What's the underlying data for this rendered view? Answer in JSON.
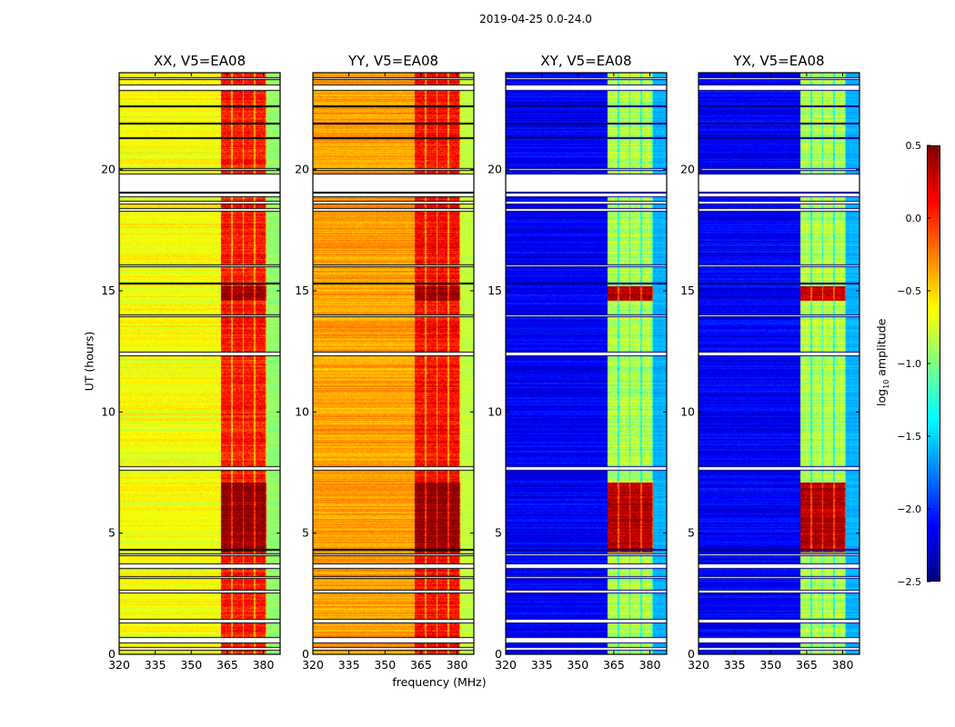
{
  "chart_data": {
    "type": "heatmap",
    "suptitle": "2019-04-25 0.0-24.0",
    "xlabel": "frequency (MHz)",
    "ylabel": "UT (hours)",
    "xlim": [
      320,
      387
    ],
    "ylim": [
      0,
      24
    ],
    "xticks": [
      320,
      335,
      350,
      365,
      380
    ],
    "yticks": [
      0,
      5,
      10,
      15,
      20
    ],
    "colorbar": {
      "label_prefix": "log",
      "label_sub": "10",
      "label_suffix": " amplitude",
      "range": [
        -2.5,
        0.5
      ],
      "ticks": [
        0.5,
        0.0,
        -0.5,
        -1.0,
        -1.5,
        -2.0,
        -2.5
      ],
      "tick_labels": [
        "0.5",
        "0.0",
        "−0.5",
        "−1.0",
        "−1.5",
        "−2.0",
        "−2.5"
      ],
      "colormap": "jet"
    },
    "panels": [
      {
        "title": "XX, V5=EA08",
        "base_level": -0.65,
        "band_level": 0.05,
        "edge_level": -0.95,
        "strong_level": 0.45
      },
      {
        "title": "YY, V5=EA08",
        "base_level": -0.35,
        "band_level": 0.1,
        "edge_level": -0.8,
        "strong_level": 0.45
      },
      {
        "title": "XY, V5=EA08",
        "base_level": -2.15,
        "band_level": -0.85,
        "edge_level": -1.6,
        "strong_level": 0.35
      },
      {
        "title": "YX, V5=EA08",
        "base_level": -2.15,
        "band_level": -0.85,
        "edge_level": -1.6,
        "strong_level": 0.35
      }
    ],
    "band_mhz": [
      362.5,
      381.5
    ],
    "strong_intervals_hours": [
      [
        4.2,
        7.1
      ],
      [
        14.6,
        15.2
      ]
    ],
    "flagged_intervals_hours": [
      [
        0.2,
        0.3
      ],
      [
        0.5,
        0.7
      ],
      [
        1.3,
        1.45
      ],
      [
        2.55,
        2.65
      ],
      [
        3.15,
        3.22
      ],
      [
        3.55,
        3.75
      ],
      [
        4.1,
        4.15
      ],
      [
        4.3,
        4.35
      ],
      [
        7.6,
        7.75
      ],
      [
        12.35,
        12.5
      ],
      [
        13.95,
        14.02
      ],
      [
        15.3,
        15.35
      ],
      [
        16.0,
        16.1
      ],
      [
        18.3,
        18.4
      ],
      [
        18.6,
        18.7
      ],
      [
        18.9,
        19.05
      ],
      [
        19.1,
        19.85
      ],
      [
        20.0,
        20.05
      ],
      [
        21.3,
        21.35
      ],
      [
        21.9,
        21.95
      ],
      [
        22.6,
        22.65
      ],
      [
        23.3,
        23.5
      ],
      [
        23.75,
        23.82
      ]
    ]
  }
}
